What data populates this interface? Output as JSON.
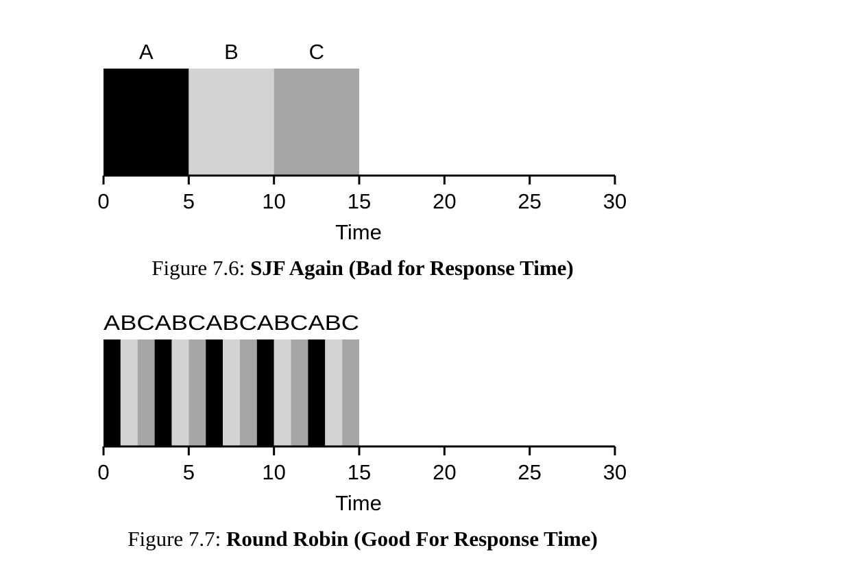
{
  "colors": {
    "A": "#000000",
    "B": "#d3d3d3",
    "C": "#a6a6a6",
    "axis": "#000000"
  },
  "chart_data": [
    {
      "type": "bar",
      "xlabel": "Time",
      "xlim": [
        0,
        30
      ],
      "xticks": [
        0,
        5,
        10,
        15,
        20,
        25,
        30
      ],
      "segment_label_style": "per-segment",
      "segments": [
        {
          "job": "A",
          "start": 0,
          "end": 5
        },
        {
          "job": "B",
          "start": 5,
          "end": 10
        },
        {
          "job": "C",
          "start": 10,
          "end": 15
        }
      ],
      "caption_prefix": "Figure 7.6: ",
      "caption_title": "SJF Again (Bad for Response Time)"
    },
    {
      "type": "bar",
      "xlabel": "Time",
      "xlim": [
        0,
        30
      ],
      "xticks": [
        0,
        5,
        10,
        15,
        20,
        25,
        30
      ],
      "segment_label_style": "sequence",
      "sequence_label": "ABCABCABCABCABC",
      "segments": [
        {
          "job": "A",
          "start": 0,
          "end": 1
        },
        {
          "job": "B",
          "start": 1,
          "end": 2
        },
        {
          "job": "C",
          "start": 2,
          "end": 3
        },
        {
          "job": "A",
          "start": 3,
          "end": 4
        },
        {
          "job": "B",
          "start": 4,
          "end": 5
        },
        {
          "job": "C",
          "start": 5,
          "end": 6
        },
        {
          "job": "A",
          "start": 6,
          "end": 7
        },
        {
          "job": "B",
          "start": 7,
          "end": 8
        },
        {
          "job": "C",
          "start": 8,
          "end": 9
        },
        {
          "job": "A",
          "start": 9,
          "end": 10
        },
        {
          "job": "B",
          "start": 10,
          "end": 11
        },
        {
          "job": "C",
          "start": 11,
          "end": 12
        },
        {
          "job": "A",
          "start": 12,
          "end": 13
        },
        {
          "job": "B",
          "start": 13,
          "end": 14
        },
        {
          "job": "C",
          "start": 14,
          "end": 15
        }
      ],
      "caption_prefix": "Figure 7.7: ",
      "caption_title": "Round Robin (Good For Response Time)"
    }
  ]
}
